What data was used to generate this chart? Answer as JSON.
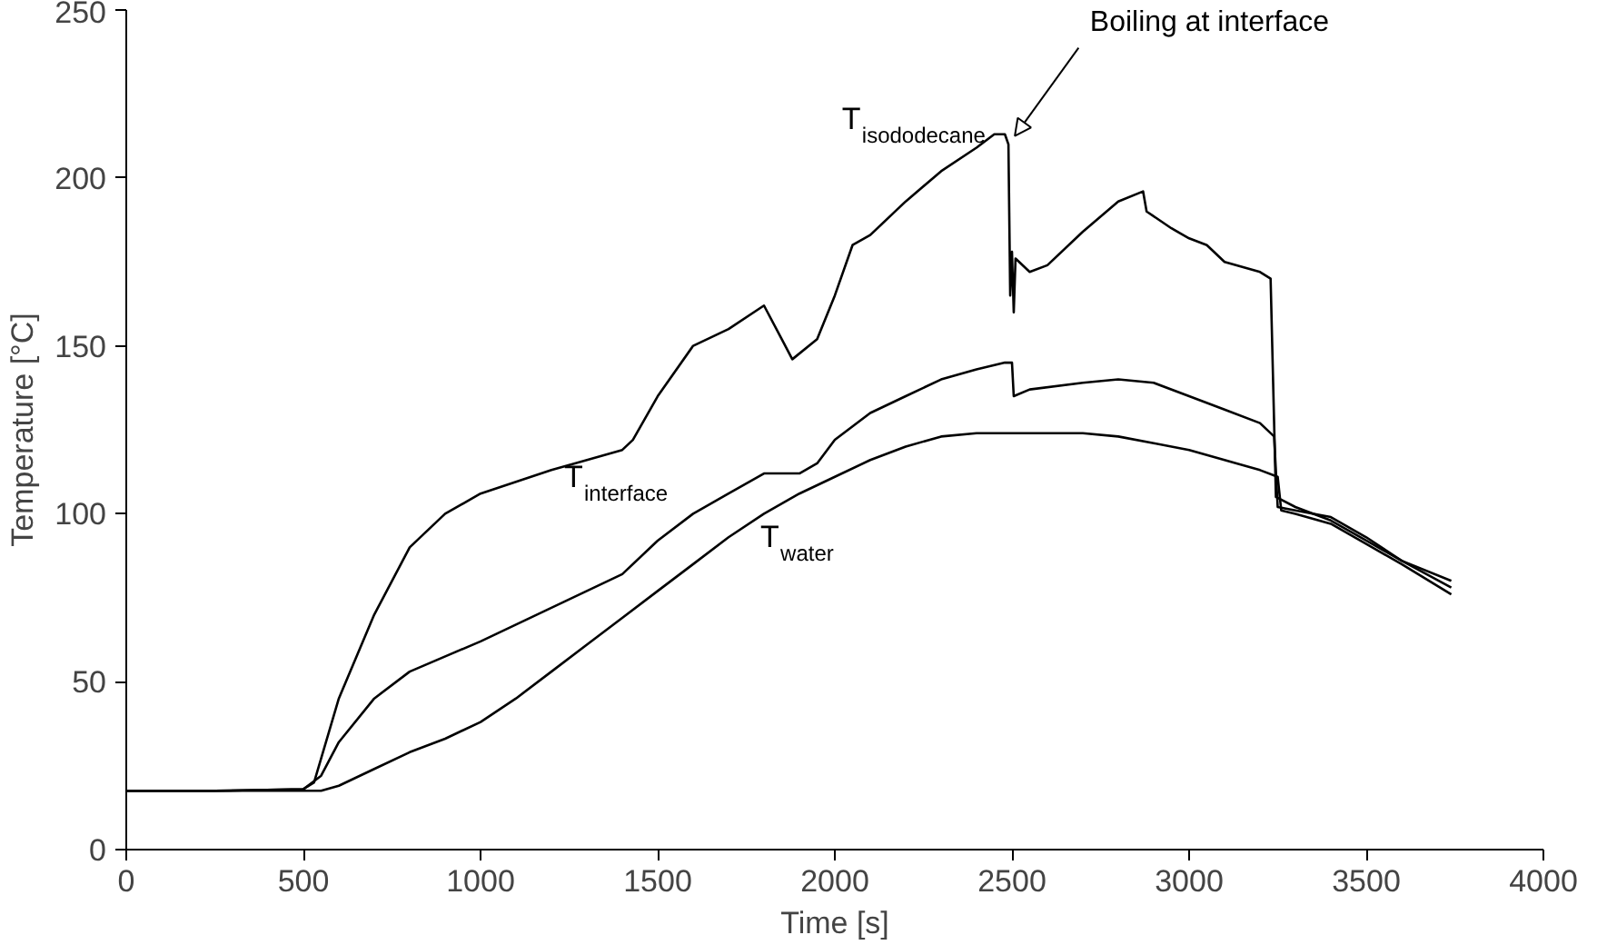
{
  "chart_data": {
    "type": "line",
    "xlabel": "Time [s]",
    "ylabel": "Temperature [°C]",
    "xlim": [
      0,
      4000
    ],
    "ylim": [
      0,
      250
    ],
    "xticks": [
      0,
      500,
      1000,
      1500,
      2000,
      2500,
      3000,
      3500,
      4000
    ],
    "yticks": [
      0,
      50,
      100,
      150,
      200,
      250
    ],
    "marker": "none",
    "line_style": "solid",
    "series": [
      {
        "color": "#000000",
        "x": [
          0,
          250,
          500,
          530,
          600,
          700,
          800,
          900,
          1000,
          1200,
          1400,
          1430,
          1500,
          1600,
          1700,
          1800,
          1850,
          1880,
          1950,
          2000,
          2050,
          2100,
          2200,
          2300,
          2400,
          2450,
          2480,
          2490,
          2495,
          2500,
          2505,
          2510,
          2550,
          2600,
          2700,
          2800,
          2870,
          2880,
          2950,
          3000,
          3050,
          3100,
          3200,
          3230,
          3245,
          3300,
          3400,
          3500,
          3600,
          3740
        ],
        "values": [
          17.5,
          17.5,
          18,
          20,
          45,
          70,
          90,
          100,
          106,
          113,
          119,
          122,
          135,
          150,
          155,
          162,
          152,
          146,
          152,
          165,
          180,
          183,
          193,
          202,
          209,
          213,
          213,
          210,
          165,
          178,
          160,
          176,
          172,
          174,
          184,
          193,
          196,
          190,
          185,
          182,
          180,
          175,
          172,
          170,
          105,
          102,
          98,
          92,
          86,
          80
        ]
      },
      {
        "color": "#000000",
        "x": [
          0,
          250,
          500,
          550,
          600,
          700,
          800,
          1000,
          1200,
          1400,
          1500,
          1600,
          1700,
          1800,
          1900,
          1950,
          2000,
          2100,
          2200,
          2300,
          2400,
          2480,
          2500,
          2505,
          2550,
          2700,
          2800,
          2900,
          3000,
          3100,
          3200,
          3240,
          3250,
          3300,
          3400,
          3500,
          3600,
          3740
        ],
        "values": [
          17.5,
          17.5,
          18,
          22,
          32,
          45,
          53,
          62,
          72,
          82,
          92,
          100,
          106,
          112,
          112,
          115,
          122,
          130,
          135,
          140,
          143,
          145,
          145,
          135,
          137,
          139,
          140,
          139,
          135,
          131,
          127,
          123,
          102,
          101,
          99,
          93,
          86,
          78
        ]
      },
      {
        "color": "#000000",
        "x": [
          0,
          250,
          550,
          600,
          700,
          800,
          900,
          1000,
          1100,
          1200,
          1300,
          1400,
          1500,
          1600,
          1700,
          1800,
          1900,
          2000,
          2100,
          2200,
          2300,
          2400,
          2500,
          2700,
          2800,
          2900,
          3000,
          3100,
          3200,
          3250,
          3260,
          3300,
          3400,
          3500,
          3600,
          3740
        ],
        "values": [
          17.5,
          17.5,
          17.5,
          19,
          24,
          29,
          33,
          38,
          45,
          53,
          61,
          69,
          77,
          85,
          93,
          100,
          106,
          111,
          116,
          120,
          123,
          124,
          124,
          124,
          123,
          121,
          119,
          116,
          113,
          111,
          101,
          100,
          97,
          91,
          85,
          76
        ]
      }
    ],
    "annotations": [
      "T$_{isododecane}$",
      "T$_{interface}$",
      "T$_{water}$",
      "Boiling at interface"
    ]
  }
}
